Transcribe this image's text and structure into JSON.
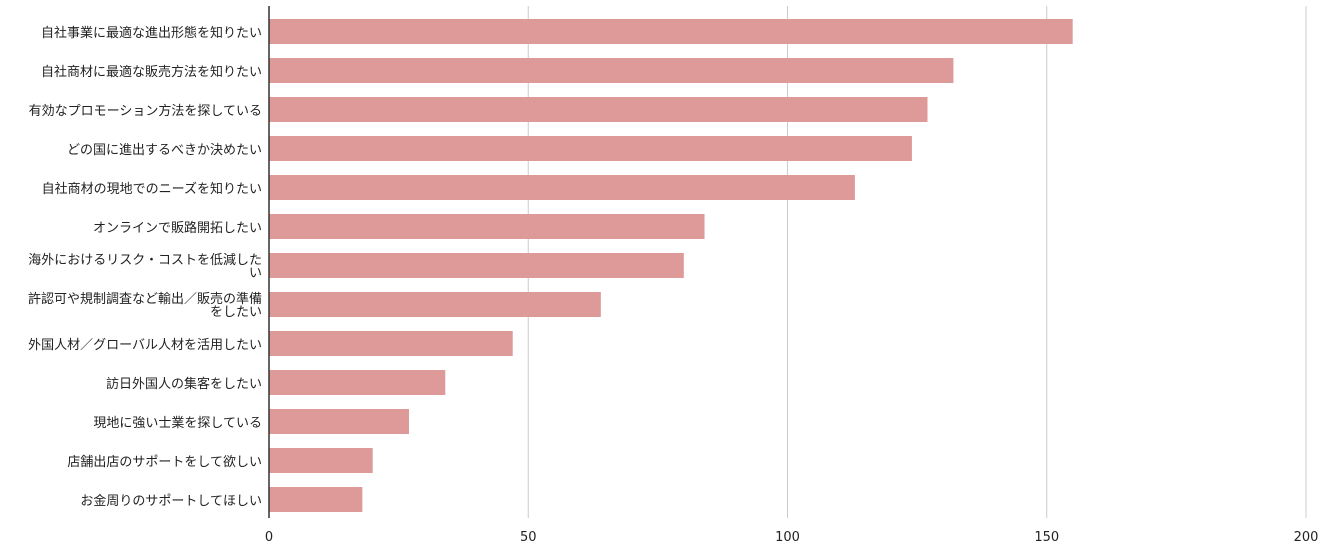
{
  "chart_data": {
    "type": "bar",
    "orientation": "horizontal",
    "title": "",
    "xlabel": "",
    "ylabel": "",
    "xlim": [
      0,
      200
    ],
    "x_ticks": [
      0,
      50,
      100,
      150,
      200
    ],
    "grid": true,
    "bar_color": "#dd9a99",
    "categories": [
      [
        "自社事業に最適な進出形態を知りたい"
      ],
      [
        "自社商材に最適な販売方法を知りたい"
      ],
      [
        "有効なプロモーション方法を探している"
      ],
      [
        "どの国に進出するべきか決めたい"
      ],
      [
        "自社商材の現地でのニーズを知りたい"
      ],
      [
        "オンラインで販路開拓したい"
      ],
      [
        "海外におけるリスク・コストを低減した",
        "い"
      ],
      [
        "許認可や規制調査など輸出／販売の準備",
        "をしたい"
      ],
      [
        "外国人材／グローバル人材を活用したい"
      ],
      [
        "訪日外国人の集客をしたい"
      ],
      [
        "現地に強い士業を探している"
      ],
      [
        "店舗出店のサポートをして欲しい"
      ],
      [
        "お金周りのサポートしてほしい"
      ]
    ],
    "values": [
      155,
      132,
      127,
      124,
      113,
      84,
      80,
      64,
      47,
      34,
      27,
      20,
      18
    ]
  }
}
